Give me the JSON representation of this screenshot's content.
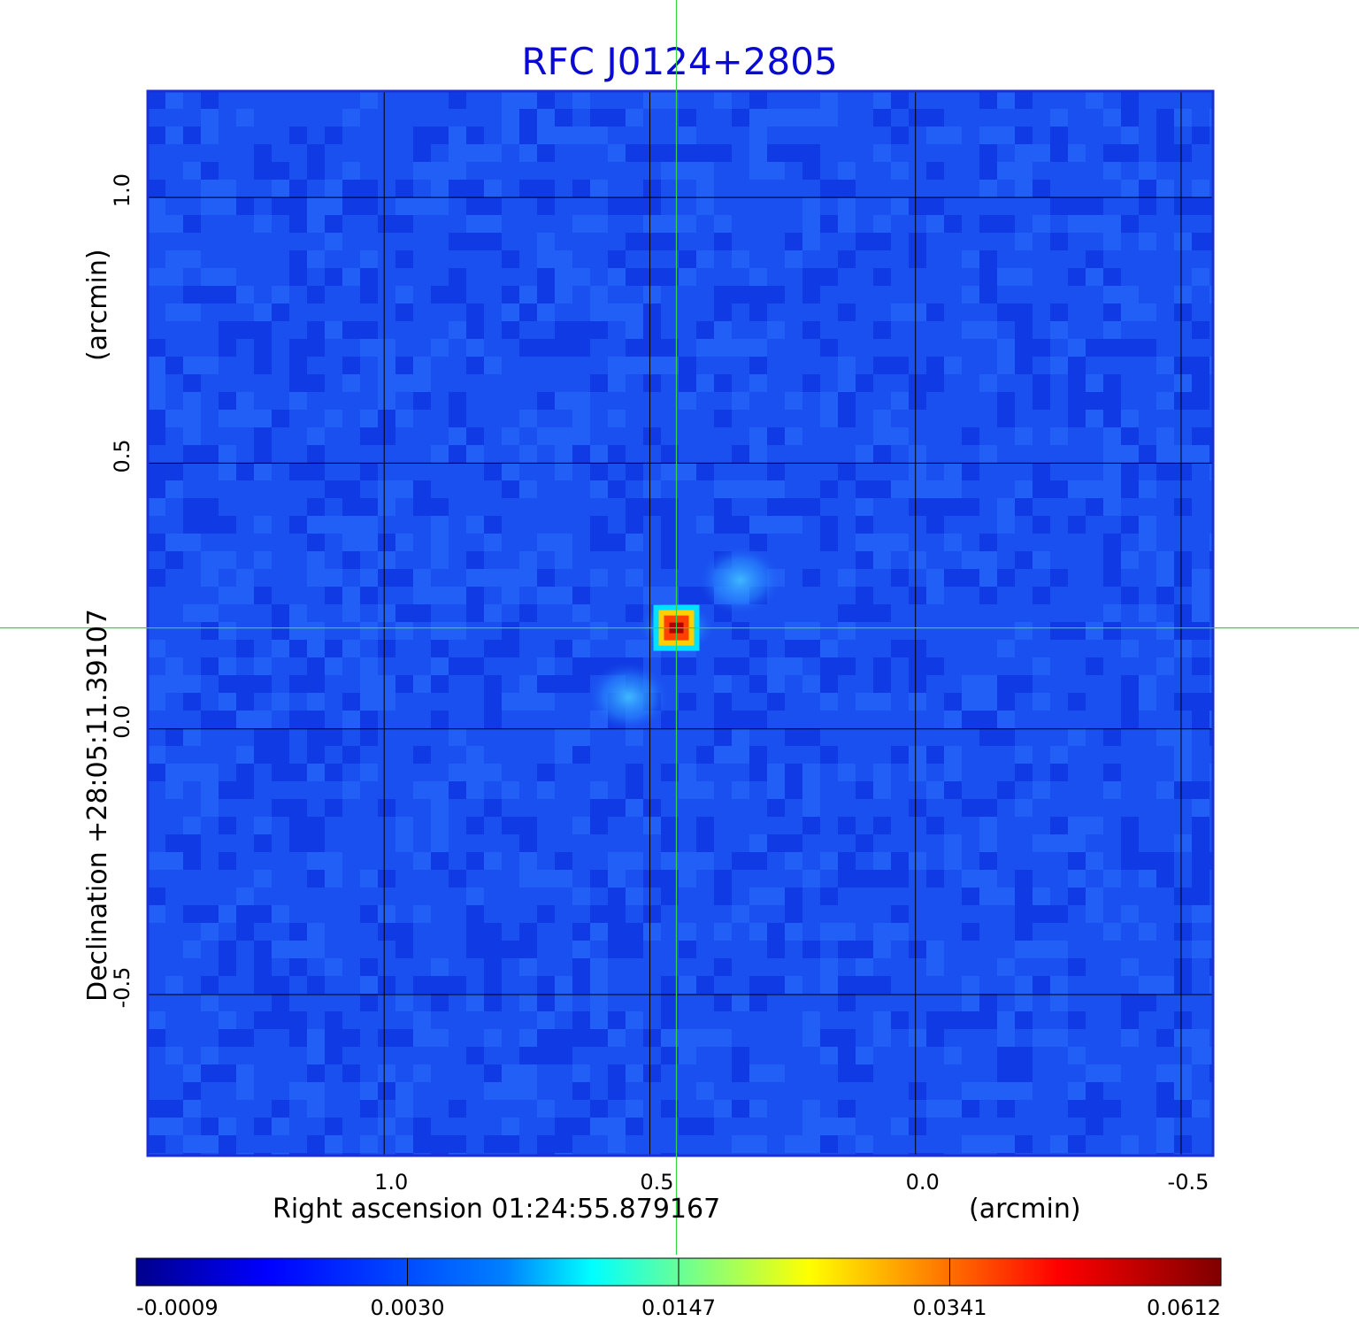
{
  "chart_data": {
    "type": "heatmap",
    "title": "RFC J0124+2805",
    "title_color": "#0a0ad2",
    "xlabel": "Right ascension  01:24:55.879167",
    "xlabel_unit": "(arcmin)",
    "ylabel": "Declination  +28:05:11.39107",
    "ylabel_unit": "(arcmin)",
    "x_ticks": [
      {
        "value": 1.0,
        "label": "1.0"
      },
      {
        "value": 0.5,
        "label": "0.5"
      },
      {
        "value": 0.0,
        "label": "0.0"
      },
      {
        "value": -0.5,
        "label": "-0.5"
      }
    ],
    "y_ticks": [
      {
        "value": 1.0,
        "label": "1.0"
      },
      {
        "value": 0.5,
        "label": "0.5"
      },
      {
        "value": 0.0,
        "label": "0.0"
      },
      {
        "value": -0.5,
        "label": "-0.5"
      }
    ],
    "xlim": [
      1.445,
      -0.56
    ],
    "ylim": [
      -0.803,
      1.2
    ],
    "x_reversed": true,
    "grid": true,
    "crosshair": {
      "x": 0.45,
      "y": 0.19
    },
    "source_peak": {
      "x": 0.45,
      "y": 0.19,
      "value": 0.0612
    },
    "secondary_features": [
      {
        "x": 0.33,
        "y": 0.28,
        "value": 0.006
      },
      {
        "x": 0.54,
        "y": 0.06,
        "value": 0.0055
      }
    ],
    "colorbar": {
      "colormap": "jet",
      "tick_labels": [
        "-0.0009",
        "0.0030",
        "0.0147",
        "0.0341",
        "0.0612"
      ],
      "colors": [
        "#00008c",
        "#0000ff",
        "#00ffff",
        "#ffff00",
        "#ff0000",
        "#800000"
      ]
    },
    "background_color": "#1a4ff0"
  }
}
